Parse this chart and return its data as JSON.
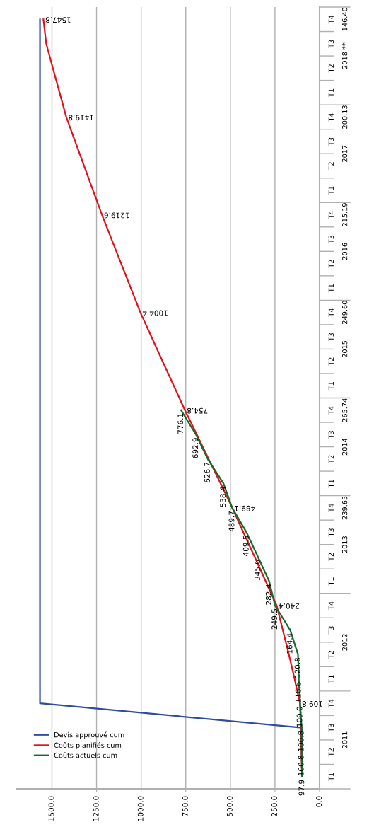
{
  "chart_data": {
    "type": "line",
    "categories": [
      "T4",
      "T3",
      "T2",
      "T1",
      "T4",
      "T3",
      "T2",
      "T1",
      "T4",
      "T3",
      "T2",
      "T1",
      "T4",
      "T3",
      "T2",
      "T1",
      "T4",
      "T3",
      "T2",
      "T1",
      "T4",
      "T3",
      "T2",
      "T1",
      "T4",
      "T3",
      "T2",
      "T1",
      "T4",
      "T3",
      "T2",
      "T1"
    ],
    "series": [
      {
        "name": "Devis approuvé cum",
        "color": "#2e4da0",
        "values": [
          1567,
          1567,
          1567,
          1567,
          1567,
          1567,
          1567,
          1567,
          1567,
          1567,
          1567,
          1567,
          1567,
          1567,
          1567,
          1567,
          1567,
          1567,
          1567,
          1567,
          1567,
          1567,
          1567,
          1567,
          1567,
          1567,
          1567,
          1567,
          1567,
          99,
          99,
          99
        ]
      },
      {
        "name": "Coûts planifiés cum",
        "color": "#e2111a",
        "values": [
          1547.8,
          1532,
          1495,
          1457,
          1419.8,
          1370,
          1320,
          1270,
          1219.6,
          1166,
          1112,
          1058,
          1004.4,
          942,
          880,
          817,
          754.8,
          688,
          622,
          555,
          489.1,
          427,
          364,
          302,
          240.4,
          206,
          172,
          140,
          109.8,
          105,
          101,
          98
        ],
        "value_labels": [
          "1547.8",
          null,
          null,
          null,
          "1419.8",
          null,
          null,
          null,
          "1219.6",
          null,
          null,
          null,
          "1004.4",
          null,
          null,
          null,
          "754.8",
          null,
          null,
          null,
          "489.1",
          null,
          null,
          null,
          "240.4",
          null,
          null,
          null,
          "109.8",
          null,
          null,
          null
        ]
      },
      {
        "name": "Coûts actuels cum",
        "color": "#156b2c",
        "values": [
          null,
          null,
          null,
          null,
          null,
          null,
          null,
          null,
          null,
          null,
          null,
          null,
          null,
          null,
          null,
          null,
          776.1,
          692.9,
          626.7,
          538.4,
          489.7,
          409.5,
          345.6,
          282.4,
          249.5,
          164.4,
          120.8,
          116.6,
          109.0,
          100.8,
          100.8,
          97.9
        ],
        "value_labels": [
          null,
          null,
          null,
          null,
          null,
          null,
          null,
          null,
          null,
          null,
          null,
          null,
          null,
          null,
          null,
          null,
          "776.1",
          "692.9",
          "626.7",
          "538.4",
          "489.7",
          "409.5",
          "345.6",
          "282.4",
          "249.5",
          "164.4",
          "120.8",
          "116.6",
          "109.0",
          "100.8",
          "100.8",
          "97.9"
        ]
      }
    ],
    "orientation": "horizontal",
    "xlim": [
      1700,
      0
    ],
    "xticks": [
      {
        "value": 0,
        "label": "0.0"
      },
      {
        "value": 250,
        "label": "250.0"
      },
      {
        "value": 500,
        "label": "500.0"
      },
      {
        "value": 750,
        "label": "750.0"
      },
      {
        "value": 1000,
        "label": "1000.0"
      },
      {
        "value": 1250,
        "label": "1250.0"
      },
      {
        "value": 1500,
        "label": "1500.0"
      }
    ],
    "grid": "x",
    "legend": "bottom left",
    "annotations": [
      "2018 **",
      "2017",
      "2016",
      "2015",
      "2014",
      "2013",
      "2012",
      "2011",
      "146.40",
      "200.13",
      "215.19",
      "249.60",
      "265.74",
      "239.65"
    ]
  }
}
